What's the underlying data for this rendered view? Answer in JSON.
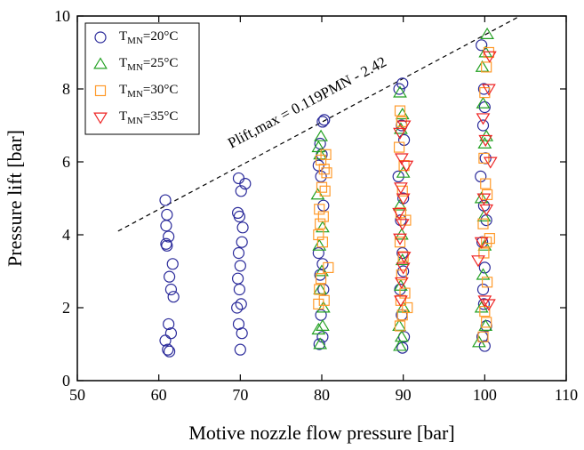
{
  "chart_data": {
    "type": "scatter",
    "x_label": "Motive nozzle flow pressure [bar]",
    "y_label": "Pressure lift [bar]",
    "annotation": "Plift,max = 0.119PMN - 2.42",
    "fit_line": {
      "x": [
        55,
        104
      ],
      "y": [
        4.1,
        9.96
      ]
    },
    "xlim": [
      50,
      110
    ],
    "xticks": [
      50,
      60,
      70,
      80,
      90,
      100,
      110
    ],
    "ylim": [
      0,
      10
    ],
    "yticks": [
      0,
      2,
      4,
      6,
      8,
      10
    ],
    "series": [
      {
        "name": "TMN=20°C",
        "color": "#2a2a9a",
        "marker": "circle",
        "x": [
          60.8,
          61.0,
          60.9,
          61.2,
          60.9,
          61.0,
          61.7,
          61.3,
          61.5,
          61.8,
          61.2,
          61.5,
          60.8,
          61.1,
          61.3,
          69.8,
          70.6,
          70.1,
          69.7,
          69.9,
          70.3,
          70.2,
          69.8,
          70.0,
          69.7,
          69.9,
          70.1,
          69.6,
          69.8,
          70.2,
          70.0,
          80.3,
          80.1,
          79.8,
          80.0,
          79.6,
          79.9,
          80.2,
          79.6,
          80.1,
          79.8,
          80.2,
          79.9,
          80.1,
          79.7,
          89.9,
          89.5,
          89.8,
          90.1,
          89.4,
          90.0,
          89.7,
          89.9,
          90.0,
          89.6,
          89.8,
          90.1,
          89.9,
          99.6,
          99.9,
          100.0,
          99.8,
          100.1,
          99.5,
          99.9,
          100.2,
          99.7,
          100.0,
          99.8,
          99.9,
          100.2,
          99.7,
          100.0
        ],
        "values": [
          4.95,
          4.55,
          4.25,
          3.95,
          3.75,
          3.7,
          3.2,
          2.85,
          2.5,
          2.3,
          1.55,
          1.3,
          1.1,
          0.85,
          0.8,
          5.55,
          5.4,
          5.2,
          4.6,
          4.5,
          4.2,
          3.8,
          3.5,
          3.15,
          2.8,
          2.5,
          2.1,
          2.0,
          1.55,
          1.3,
          0.85,
          7.15,
          7.1,
          6.5,
          6.2,
          5.9,
          5.6,
          4.8,
          3.5,
          3.2,
          2.9,
          2.5,
          1.8,
          1.2,
          1.0,
          8.15,
          8.0,
          7.0,
          6.6,
          5.6,
          5.0,
          4.4,
          3.5,
          3.0,
          2.5,
          1.8,
          1.2,
          0.9,
          9.2,
          8.0,
          7.5,
          7.0,
          6.1,
          5.6,
          4.8,
          4.4,
          3.8,
          3.1,
          2.5,
          2.1,
          1.5,
          1.2,
          0.95
        ]
      },
      {
        "name": "TMN=25°C",
        "color": "#22a022",
        "marker": "triangle-up",
        "x": [
          79.9,
          79.6,
          79.8,
          79.5,
          80.1,
          79.7,
          80.0,
          79.8,
          80.2,
          80.1,
          79.6,
          79.8,
          89.6,
          89.9,
          89.7,
          90.0,
          89.6,
          89.8,
          89.9,
          89.7,
          90.0,
          89.5,
          89.8,
          89.6,
          100.3,
          100.1,
          99.7,
          99.8,
          100.2,
          100.0,
          99.6,
          99.9,
          100.0,
          99.8,
          99.6,
          100.1,
          99.3
        ],
        "values": [
          6.7,
          6.4,
          6.2,
          5.1,
          4.2,
          3.7,
          3.0,
          2.5,
          2.0,
          1.5,
          1.4,
          1.0,
          7.9,
          7.3,
          6.9,
          5.7,
          4.8,
          4.0,
          3.3,
          2.6,
          2.0,
          1.5,
          1.2,
          0.95,
          9.5,
          9.0,
          8.6,
          7.6,
          6.7,
          6.5,
          5.0,
          4.5,
          3.7,
          2.9,
          2.0,
          1.5,
          1.05
        ]
      },
      {
        "name": "TMN=30°C",
        "color": "#ff9a2a",
        "marker": "square",
        "x": [
          80.5,
          79.9,
          80.3,
          80.6,
          80.0,
          80.4,
          79.7,
          80.2,
          79.8,
          79.6,
          80.1,
          80.8,
          79.9,
          79.7,
          80.3,
          79.6,
          89.6,
          89.8,
          89.5,
          90.1,
          89.9,
          89.7,
          90.3,
          89.6,
          90.0,
          89.8,
          90.2,
          89.7,
          90.5,
          89.9,
          89.6,
          100.5,
          100.2,
          100.0,
          99.9,
          100.1,
          100.3,
          99.8,
          100.6,
          100.2,
          99.9,
          100.3,
          100.0,
          100.2,
          99.8
        ],
        "values": [
          6.2,
          6.05,
          5.8,
          5.7,
          5.3,
          5.2,
          4.7,
          4.5,
          4.3,
          4.0,
          3.8,
          3.1,
          2.8,
          2.5,
          2.2,
          2.1,
          7.4,
          7.1,
          6.4,
          5.9,
          5.2,
          4.6,
          4.4,
          3.8,
          3.4,
          2.9,
          2.4,
          2.2,
          2.0,
          1.8,
          1.5,
          9.0,
          8.6,
          7.9,
          6.1,
          5.4,
          5.1,
          4.3,
          3.9,
          3.8,
          3.5,
          2.7,
          1.9,
          1.6,
          1.2
        ]
      },
      {
        "name": "TMN=35°C",
        "color": "#ee2222",
        "marker": "triangle-down",
        "x": [
          90.1,
          89.6,
          89.8,
          90.4,
          89.7,
          90.0,
          89.5,
          89.9,
          89.6,
          90.1,
          90.0,
          89.8,
          89.7,
          100.6,
          100.5,
          99.8,
          100.1,
          100.7,
          99.9,
          100.2,
          99.6,
          99.2,
          100.0,
          100.5
        ],
        "values": [
          7.0,
          6.8,
          6.1,
          5.9,
          5.3,
          5.0,
          4.6,
          4.3,
          3.9,
          3.4,
          3.1,
          2.7,
          2.2,
          8.9,
          8.0,
          7.2,
          6.6,
          6.0,
          5.0,
          4.7,
          3.8,
          3.3,
          2.2,
          2.1
        ]
      }
    ]
  }
}
